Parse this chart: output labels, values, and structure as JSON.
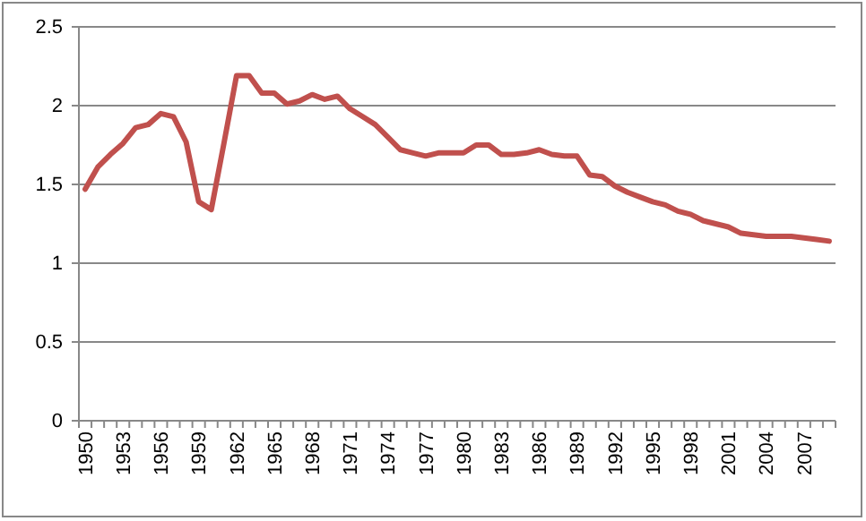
{
  "chart_data": {
    "type": "line",
    "categories": [
      "1950",
      null,
      null,
      "1953",
      null,
      null,
      "1956",
      null,
      null,
      "1959",
      null,
      null,
      "1962",
      null,
      null,
      "1965",
      null,
      null,
      "1968",
      null,
      null,
      "1971",
      null,
      null,
      "1974",
      null,
      null,
      "1977",
      null,
      null,
      "1980",
      null,
      null,
      "1983",
      null,
      null,
      "1986",
      null,
      null,
      "1989",
      null,
      null,
      "1992",
      null,
      null,
      "1995",
      null,
      null,
      "1998",
      null,
      null,
      "2001",
      null,
      null,
      "2004",
      null,
      null,
      "2007",
      null,
      null
    ],
    "series": [
      {
        "color": "#c0504d",
        "values": [
          1.47,
          1.61,
          1.69,
          1.76,
          1.86,
          1.88,
          1.95,
          1.93,
          1.77,
          1.39,
          1.34,
          1.76,
          2.19,
          2.19,
          2.08,
          2.08,
          2.01,
          2.03,
          2.07,
          2.04,
          2.06,
          1.98,
          1.93,
          1.88,
          1.8,
          1.72,
          1.7,
          1.68,
          1.7,
          1.7,
          1.7,
          1.75,
          1.75,
          1.69,
          1.69,
          1.7,
          1.72,
          1.69,
          1.68,
          1.68,
          1.56,
          1.55,
          1.49,
          1.45,
          1.42,
          1.39,
          1.37,
          1.33,
          1.31,
          1.27,
          1.25,
          1.23,
          1.19,
          1.18,
          1.17,
          1.17,
          1.17,
          1.16,
          1.15,
          1.14
        ]
      }
    ],
    "ylim": [
      0,
      2.5
    ],
    "yticks": [
      0,
      0.5,
      1,
      1.5,
      2,
      2.5
    ],
    "grid": "y",
    "marker": "none",
    "line_style": "solid"
  }
}
